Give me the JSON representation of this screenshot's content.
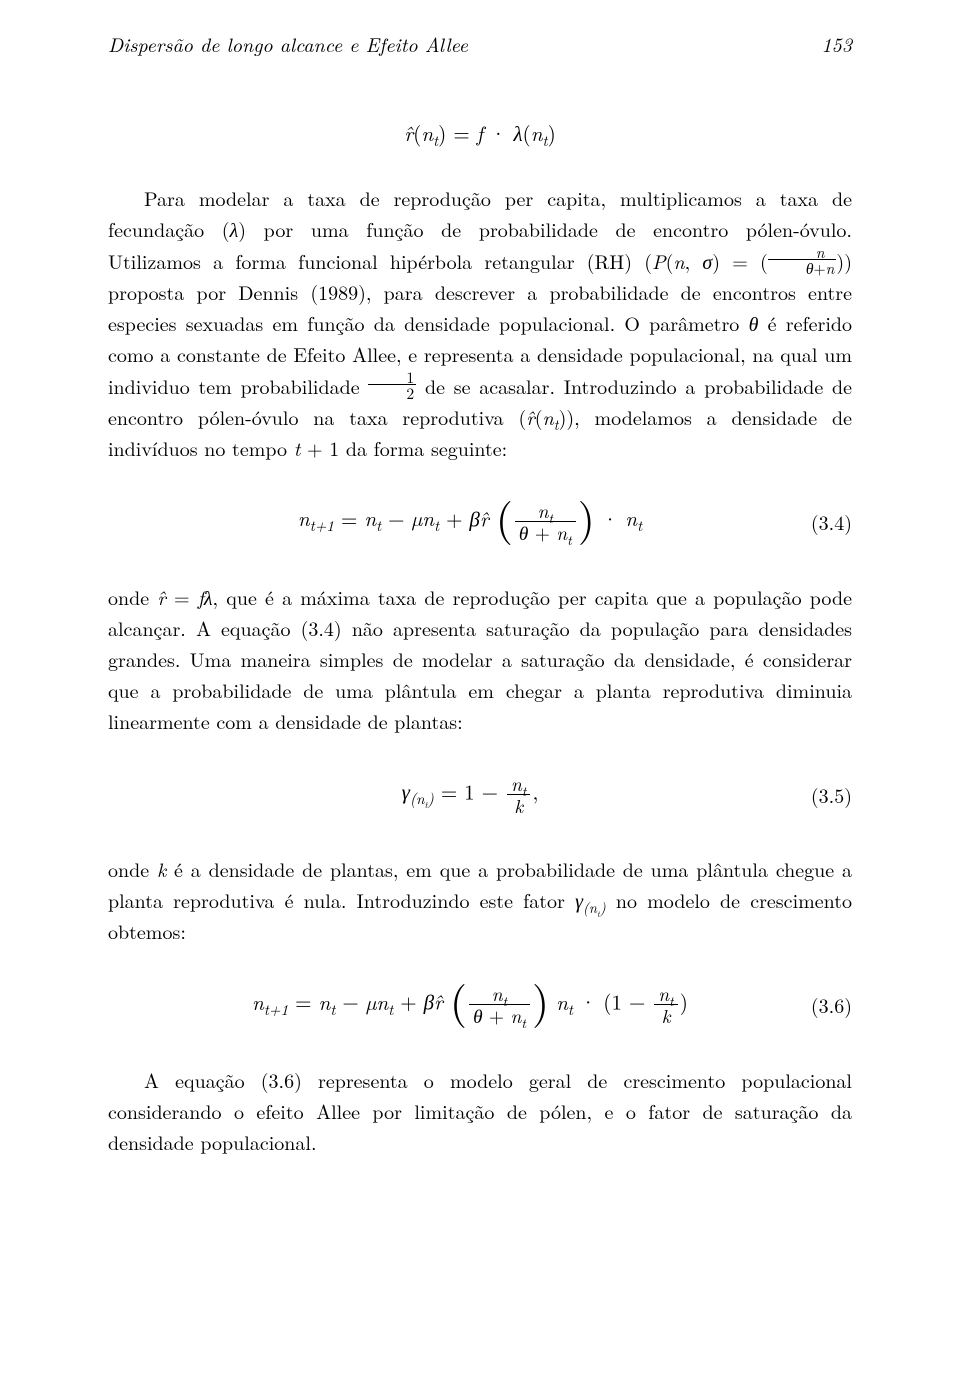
{
  "header": {
    "running_title": "Dispersão de longo alcance e Efeito Allee",
    "page_number": "153"
  },
  "eq_top": "r̂(n_t) = f · λ(n_t)",
  "para1": "Para modelar a taxa de reprodução per capita, multiplicamos a taxa de fecundação (λ) por uma função de probabilidade de encontro pólen-óvulo. Utilizamos a forma funcional hipérbola retangular (RH) (P(n, σ) = (",
  "para1_after_frac": ")) proposta por Dennis (1989), para descrever a probabilidade de encontros entre especies sexuadas em função da densidade populacional. O parâmetro θ é referido como a constante de Efeito Allee, e representa a densidade populacional, na qual um individuo tem probabilidade ",
  "para1_end": " de se acasalar. Introduzindo a probabilidade de encontro pólen-óvulo na taxa reprodutiva (r̂(n_t)), modelamos a densidade de indivíduos no tempo t + 1 da forma seguinte:",
  "inline_frac1": {
    "num": "n",
    "den": "θ+n"
  },
  "inline_frac_half": {
    "num": "1",
    "den": "2"
  },
  "eq34": {
    "lhs": "n_{t+1} = n_t − µn_t + βr̂",
    "frac": {
      "num": "n_t",
      "den": "θ + n_t"
    },
    "rhs": " · n_t",
    "num": "(3.4)"
  },
  "para2": "onde r̂ = fλ, que é a máxima taxa de reprodução per capita que a população pode alcançar. A equação (3.4) não apresenta saturação da população para densidades grandes. Uma maneira simples de modelar a saturação da densidade, é considerar que a probabilidade de uma plântula em chegar a planta reprodutiva diminuia linearmente com a densidade de plantas:",
  "eq35": {
    "lhs": "γ_{(n_t)} = 1 − ",
    "frac": {
      "num": "n_t",
      "den": "k"
    },
    "rhs": ",",
    "num": "(3.5)"
  },
  "para3": "onde k é a densidade de plantas, em que a probabilidade de uma plântula chegue a planta reprodutiva é nula. Introduzindo este fator γ_{(n_t)} no modelo de crescimento obtemos:",
  "eq36": {
    "lhs": "n_{t+1} = n_t − µn_t + βr̂",
    "frac1": {
      "num": "n_t",
      "den": "θ + n_t"
    },
    "mid": " n_t · (1 − ",
    "frac2": {
      "num": "n_t",
      "den": "k"
    },
    "rhs": ")",
    "num": "(3.6)"
  },
  "para4": "A equação (3.6) representa o modelo geral de crescimento populacional considerando o efeito Allee por limitação de pólen, e o fator de saturação da densidade populacional."
}
